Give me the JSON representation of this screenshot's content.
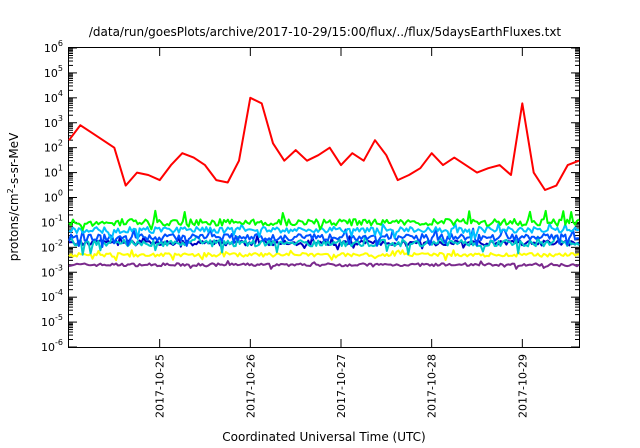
{
  "chart_data": {
    "type": "line",
    "title": "/data/run/goesPlots/archive/2017-10-29/15:00/flux/../flux/5daysEarthFluxes.txt",
    "xlabel": "Coordinated Universal Time (UTC)",
    "ylabel": "protons/cm2-s-sr-MeV",
    "ylabel_parts": {
      "pre": "protons/cm",
      "sup": "2",
      "post": "-s-sr-MeV"
    },
    "yscale": "log",
    "ylim": [
      1e-06,
      1000000.0
    ],
    "y_ticks": [
      {
        "base": "10",
        "exp": "-6",
        "value": 1e-06
      },
      {
        "base": "10",
        "exp": "-5",
        "value": 1e-05
      },
      {
        "base": "10",
        "exp": "-4",
        "value": 0.0001
      },
      {
        "base": "10",
        "exp": "-3",
        "value": 0.001
      },
      {
        "base": "10",
        "exp": "-2",
        "value": 0.01
      },
      {
        "base": "10",
        "exp": "-1",
        "value": 0.1
      },
      {
        "base": "10",
        "exp": "0",
        "value": 1
      },
      {
        "base": "10",
        "exp": "1",
        "value": 10
      },
      {
        "base": "10",
        "exp": "2",
        "value": 100
      },
      {
        "base": "10",
        "exp": "3",
        "value": 1000
      },
      {
        "base": "10",
        "exp": "4",
        "value": 10000
      },
      {
        "base": "10",
        "exp": "5",
        "value": 100000
      },
      {
        "base": "10",
        "exp": "6",
        "value": 1000000
      }
    ],
    "xlim": [
      "2017-10-24 00:00",
      "2017-10-29 15:00"
    ],
    "x_ticks": [
      "2017-10-25",
      "2017-10-26",
      "2017-10-27",
      "2017-10-28",
      "2017-10-29"
    ],
    "grid": false,
    "legend": "none",
    "series": [
      {
        "color": "#ff0000",
        "points": [
          [
            "2017-10-24 00:00",
            200
          ],
          [
            "2017-10-24 03:00",
            800
          ],
          [
            "2017-10-24 06:00",
            400
          ],
          [
            "2017-10-24 09:00",
            200
          ],
          [
            "2017-10-24 12:00",
            100
          ],
          [
            "2017-10-24 15:00",
            3
          ],
          [
            "2017-10-24 18:00",
            10
          ],
          [
            "2017-10-24 21:00",
            8
          ],
          [
            "2017-10-25 00:00",
            5
          ],
          [
            "2017-10-25 03:00",
            20
          ],
          [
            "2017-10-25 06:00",
            60
          ],
          [
            "2017-10-25 09:00",
            40
          ],
          [
            "2017-10-25 12:00",
            20
          ],
          [
            "2017-10-25 15:00",
            5
          ],
          [
            "2017-10-25 18:00",
            4
          ],
          [
            "2017-10-25 21:00",
            30
          ],
          [
            "2017-10-26 00:00",
            10000
          ],
          [
            "2017-10-26 03:00",
            6000
          ],
          [
            "2017-10-26 06:00",
            150
          ],
          [
            "2017-10-26 09:00",
            30
          ],
          [
            "2017-10-26 12:00",
            80
          ],
          [
            "2017-10-26 15:00",
            30
          ],
          [
            "2017-10-26 18:00",
            50
          ],
          [
            "2017-10-26 21:00",
            100
          ],
          [
            "2017-10-27 00:00",
            20
          ],
          [
            "2017-10-27 03:00",
            60
          ],
          [
            "2017-10-27 06:00",
            30
          ],
          [
            "2017-10-27 09:00",
            200
          ],
          [
            "2017-10-27 12:00",
            50
          ],
          [
            "2017-10-27 15:00",
            5
          ],
          [
            "2017-10-27 18:00",
            8
          ],
          [
            "2017-10-27 21:00",
            15
          ],
          [
            "2017-10-28 00:00",
            60
          ],
          [
            "2017-10-28 03:00",
            20
          ],
          [
            "2017-10-28 06:00",
            40
          ],
          [
            "2017-10-28 09:00",
            20
          ],
          [
            "2017-10-28 12:00",
            10
          ],
          [
            "2017-10-28 15:00",
            15
          ],
          [
            "2017-10-28 18:00",
            20
          ],
          [
            "2017-10-28 21:00",
            8
          ],
          [
            "2017-10-29 00:00",
            6000
          ],
          [
            "2017-10-29 03:00",
            10
          ],
          [
            "2017-10-29 06:00",
            2
          ],
          [
            "2017-10-29 09:00",
            3
          ],
          [
            "2017-10-29 12:00",
            20
          ],
          [
            "2017-10-29 15:00",
            30
          ]
        ]
      },
      {
        "color": "#00ff00",
        "typical": 0.1,
        "range": [
          0.05,
          0.3
        ]
      },
      {
        "color": "#00c0ff",
        "typical": 0.05,
        "range": [
          0.02,
          0.1
        ]
      },
      {
        "color": "#0050ff",
        "typical": 0.025,
        "range": [
          0.01,
          0.06
        ]
      },
      {
        "color": "#00c8c8",
        "typical": 0.015,
        "range": [
          0.005,
          0.03
        ]
      },
      {
        "color": "#0000c0",
        "typical": 0.015,
        "range": [
          0.008,
          0.03
        ]
      },
      {
        "color": "#ffff00",
        "typical": 0.005,
        "range": [
          0.003,
          0.008
        ]
      },
      {
        "color": "#7a2a8c",
        "typical": 0.002,
        "range": [
          0.0013,
          0.0028
        ]
      }
    ]
  }
}
